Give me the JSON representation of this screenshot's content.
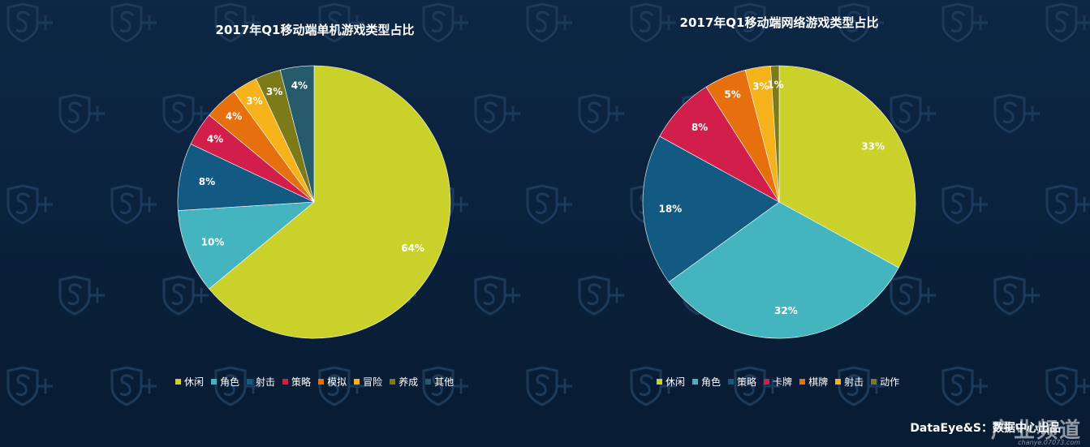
{
  "colors": {
    "background": "#0b2340",
    "lime": "#c9d12a",
    "teal": "#44b5be",
    "navy": "#135a82",
    "crimson": "#d21e4b",
    "orange": "#e5700d",
    "amber": "#f6b21b",
    "olive": "#7d7a1a",
    "slate": "#255b6b"
  },
  "chart_data": [
    {
      "type": "pie",
      "title": "2017年Q1移动端单机游戏类型占比",
      "slices": [
        {
          "label": "休闲",
          "value": 64,
          "display": "64%",
          "color": "#c9d12a"
        },
        {
          "label": "角色",
          "value": 10,
          "display": "10%",
          "color": "#44b5be"
        },
        {
          "label": "射击",
          "value": 8,
          "display": "8%",
          "color": "#135a82"
        },
        {
          "label": "策略",
          "value": 4,
          "display": "4%",
          "color": "#d21e4b"
        },
        {
          "label": "模拟",
          "value": 4,
          "display": "4%",
          "color": "#e5700d"
        },
        {
          "label": "冒险",
          "value": 3,
          "display": "3%",
          "color": "#f6b21b"
        },
        {
          "label": "养成",
          "value": 3,
          "display": "3%",
          "color": "#7d7a1a"
        },
        {
          "label": "其他",
          "value": 4,
          "display": "4%",
          "color": "#255b6b"
        }
      ],
      "legend_placement": "bottom"
    },
    {
      "type": "pie",
      "title": "2017年Q1移动端网络游戏类型占比",
      "slices": [
        {
          "label": "休闲",
          "value": 33,
          "display": "33%",
          "color": "#c9d12a"
        },
        {
          "label": "角色",
          "value": 32,
          "display": "32%",
          "color": "#44b5be"
        },
        {
          "label": "策略",
          "value": 18,
          "display": "18%",
          "color": "#135a82"
        },
        {
          "label": "卡牌",
          "value": 8,
          "display": "8%",
          "color": "#d21e4b"
        },
        {
          "label": "棋牌",
          "value": 5,
          "display": "5%",
          "color": "#e5700d"
        },
        {
          "label": "射击",
          "value": 3,
          "display": "3%",
          "color": "#f6b21b"
        },
        {
          "label": "动作",
          "value": 1,
          "display": "1%",
          "color": "#7d7a1a"
        }
      ],
      "legend_placement": "bottom"
    }
  ],
  "footer": {
    "credit": "DataEye&S：数据中心出品",
    "watermark": "产业频道",
    "watermark_url": "chanye.07073.com"
  }
}
